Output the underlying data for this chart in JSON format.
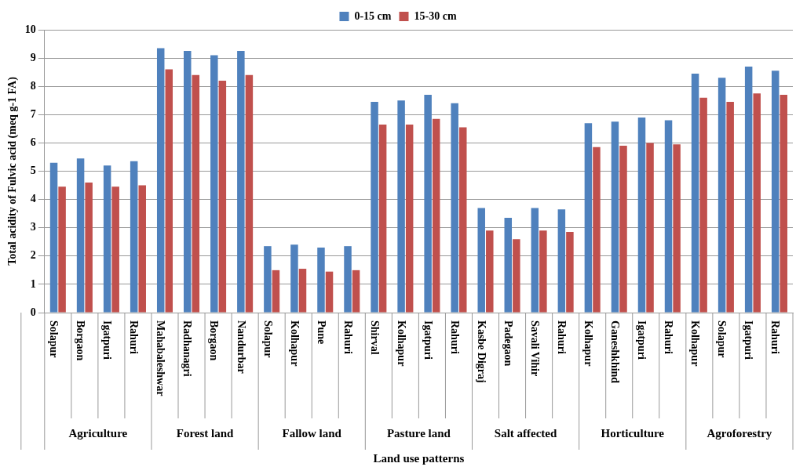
{
  "chart_data": {
    "type": "bar",
    "xlabel": "Land use patterns",
    "ylabel": "Total acidity of Fulvic acid (meq g-1 FA)",
    "categories": [
      "Solapur",
      "Borgaon",
      "Igatpuri",
      "Rahuri",
      "Mahabaleshwar",
      "Radhanagri",
      "Borgaon",
      "Nandurbar",
      "Solapur",
      "Kolhapur",
      "Pune",
      "Rahuri",
      "Shirval",
      "Kolhapur",
      "Igatpuri",
      "Rahuri",
      "Kasbe Digraj",
      "Padegaon",
      "Savali Vihir",
      "Rahuri",
      "Kolhapur",
      "Ganeshkhind",
      "Igatpuri",
      "Rahuri",
      "Kolhapur",
      "Solapur",
      "Igatpuri",
      "Rahuri"
    ],
    "series": [
      {
        "name": "0-15 cm",
        "color": "#4f81bd",
        "values": [
          5.3,
          5.45,
          5.2,
          5.35,
          9.35,
          9.25,
          9.1,
          9.25,
          2.35,
          2.4,
          2.3,
          2.35,
          7.45,
          7.5,
          7.7,
          7.4,
          3.7,
          3.35,
          3.7,
          3.65,
          6.7,
          6.75,
          6.9,
          6.8,
          8.45,
          8.3,
          8.7,
          8.55
        ]
      },
      {
        "name": "15-30 cm",
        "color": "#c0504d",
        "values": [
          4.45,
          4.6,
          4.45,
          4.5,
          8.6,
          8.4,
          8.2,
          8.4,
          1.5,
          1.55,
          1.45,
          1.5,
          6.65,
          6.65,
          6.85,
          6.55,
          2.9,
          2.6,
          2.9,
          2.85,
          5.85,
          5.9,
          6.0,
          5.95,
          7.6,
          7.45,
          7.75,
          7.7
        ]
      }
    ],
    "annotations": [
      "Agriculture",
      "Forest land",
      "Fallow land",
      "Pasture land",
      "Salt affected",
      "Horticulture",
      "Agroforestry"
    ],
    "ylim": [
      0,
      10
    ],
    "yticks": [
      0,
      1,
      2,
      3,
      4,
      5,
      6,
      7,
      8,
      9,
      10
    ],
    "grid": "y",
    "legend": "top"
  }
}
